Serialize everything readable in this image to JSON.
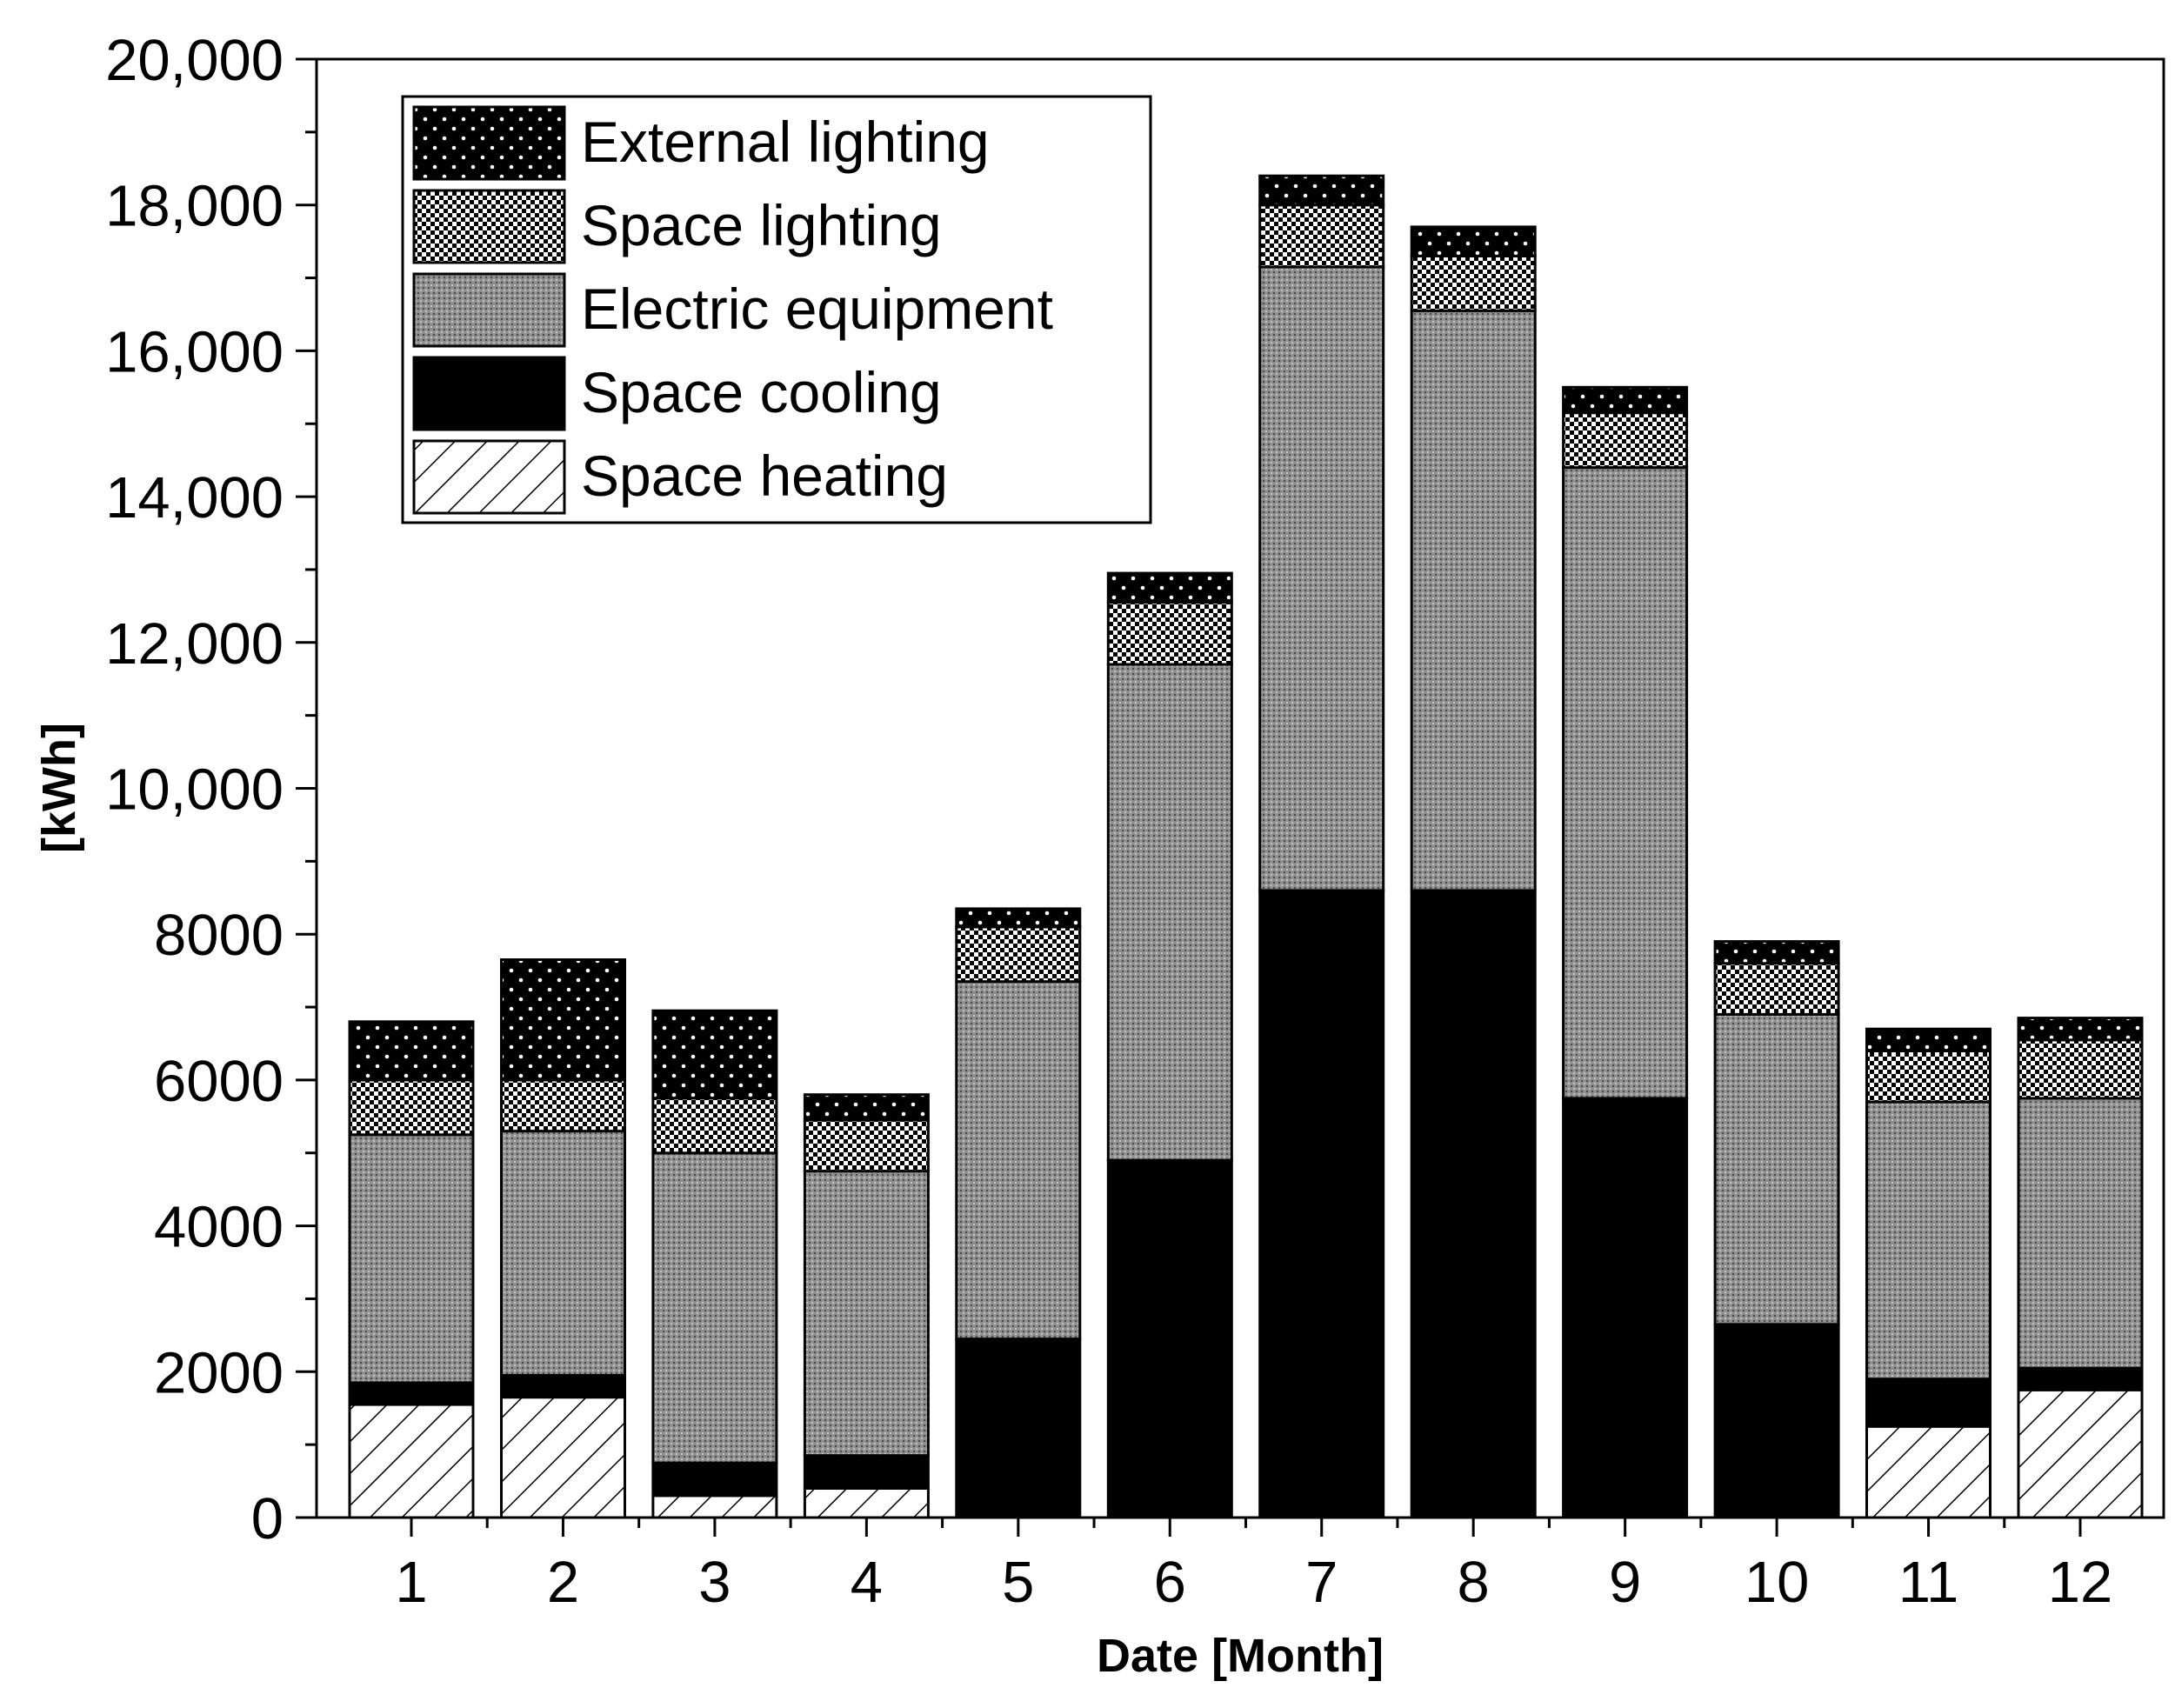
{
  "chart_data": {
    "type": "bar",
    "stacked": true,
    "title": "",
    "xlabel": "Date [Month]",
    "ylabel": "[kWh]",
    "ylim": [
      0,
      20000
    ],
    "yticks": [
      0,
      2000,
      4000,
      6000,
      8000,
      10000,
      12000,
      14000,
      16000,
      18000,
      20000
    ],
    "ytick_labels": [
      "0",
      "2000",
      "4000",
      "6000",
      "8000",
      "10,000",
      "12,000",
      "14,000",
      "16,000",
      "18,000",
      "20,000"
    ],
    "categories": [
      "1",
      "2",
      "3",
      "4",
      "5",
      "6",
      "7",
      "8",
      "9",
      "10",
      "11",
      "12"
    ],
    "legend_position": "top-left",
    "legend_order": [
      "External lighting",
      "Space lighting",
      "Electric equipment",
      "Space cooling",
      "Space heating"
    ],
    "series": [
      {
        "name": "Space heating",
        "pattern": "diagonal-hatch",
        "values": [
          1550,
          1650,
          300,
          400,
          0,
          0,
          0,
          0,
          0,
          0,
          1250,
          1750
        ]
      },
      {
        "name": "Space cooling",
        "pattern": "solid-black",
        "values": [
          300,
          300,
          450,
          450,
          2450,
          4900,
          8600,
          8600,
          5750,
          2650,
          650,
          300
        ]
      },
      {
        "name": "Electric equipment",
        "pattern": "dense-gray",
        "values": [
          3400,
          3350,
          4250,
          3900,
          4900,
          6800,
          8550,
          7950,
          8650,
          4250,
          3800,
          3700
        ]
      },
      {
        "name": "Space lighting",
        "pattern": "checker",
        "values": [
          750,
          700,
          750,
          700,
          750,
          850,
          850,
          750,
          750,
          700,
          700,
          800
        ]
      },
      {
        "name": "External lighting",
        "pattern": "dotted-black",
        "values": [
          800,
          1650,
          1200,
          350,
          250,
          400,
          400,
          400,
          350,
          300,
          300,
          300
        ]
      }
    ]
  }
}
